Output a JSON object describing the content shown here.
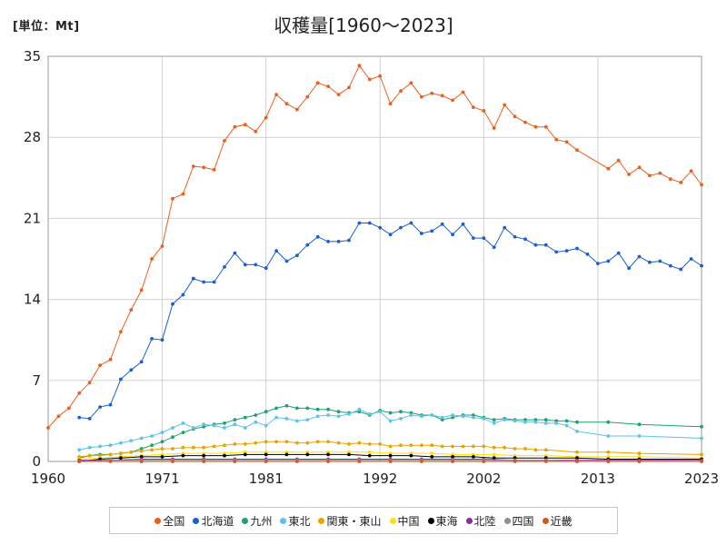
{
  "header": {
    "unit": "[単位：Mt]",
    "title": "収穫量[1960～2023]"
  },
  "chart_data": {
    "type": "line",
    "title": "収穫量[1960～2023]",
    "unit": "[単位：Mt]",
    "xlabel": "",
    "ylabel": "",
    "xlim": [
      1960,
      2023
    ],
    "ylim": [
      0,
      35
    ],
    "x_ticks": [
      "1960",
      "1971",
      "1981",
      "1992",
      "2002",
      "2013",
      "2023"
    ],
    "x_tick_values": [
      1960,
      1971,
      1981,
      1992,
      2002,
      2013,
      2023
    ],
    "y_ticks": [
      "0",
      "7",
      "14",
      "21",
      "28",
      "35"
    ],
    "y_tick_values": [
      0,
      7,
      14,
      21,
      28,
      35
    ],
    "grid": true,
    "legend_position": "bottom",
    "series": [
      {
        "name": "全国",
        "color": "#e8601c",
        "x": [
          1960,
          1961,
          1962,
          1963,
          1964,
          1965,
          1966,
          1967,
          1968,
          1969,
          1970,
          1971,
          1972,
          1973,
          1974,
          1975,
          1976,
          1977,
          1978,
          1979,
          1980,
          1981,
          1982,
          1983,
          1984,
          1985,
          1986,
          1987,
          1988,
          1989,
          1990,
          1991,
          1992,
          1993,
          1994,
          1995,
          1996,
          1997,
          1998,
          1999,
          2000,
          2001,
          2002,
          2003,
          2004,
          2005,
          2006,
          2007,
          2008,
          2009,
          2010,
          2011,
          2014,
          2015,
          2016,
          2017,
          2018,
          2019,
          2020,
          2021,
          2022,
          2023
        ],
        "values": [
          2.9,
          3.9,
          4.6,
          5.9,
          6.8,
          8.3,
          8.8,
          11.2,
          13.1,
          14.8,
          17.5,
          18.6,
          22.7,
          23.1,
          25.5,
          25.4,
          25.2,
          27.7,
          28.9,
          29.1,
          28.5,
          29.7,
          31.7,
          30.9,
          30.4,
          31.5,
          32.7,
          32.4,
          31.7,
          32.3,
          34.2,
          33.0,
          33.3,
          30.9,
          32.0,
          32.7,
          31.5,
          31.8,
          31.6,
          31.2,
          31.9,
          30.6,
          30.3,
          28.8,
          30.8,
          29.8,
          29.3,
          28.9,
          28.9,
          27.8,
          27.6,
          26.9,
          25.3,
          26.0,
          24.8,
          25.4,
          24.7,
          24.9,
          24.4,
          24.1,
          25.1,
          23.9
        ]
      },
      {
        "name": "北海道",
        "color": "#1a5fd0",
        "x": [
          1963,
          1964,
          1965,
          1966,
          1967,
          1968,
          1969,
          1970,
          1971,
          1972,
          1973,
          1974,
          1975,
          1976,
          1977,
          1978,
          1979,
          1980,
          1981,
          1982,
          1983,
          1984,
          1985,
          1986,
          1987,
          1988,
          1989,
          1990,
          1991,
          1992,
          1993,
          1994,
          1995,
          1996,
          1997,
          1998,
          1999,
          2000,
          2001,
          2002,
          2003,
          2004,
          2005,
          2006,
          2007,
          2008,
          2009,
          2010,
          2011,
          2012,
          2013,
          2014,
          2015,
          2016,
          2017,
          2018,
          2019,
          2020,
          2021,
          2022,
          2023
        ],
        "values": [
          3.8,
          3.7,
          4.7,
          4.9,
          7.1,
          7.9,
          8.6,
          10.6,
          10.5,
          13.6,
          14.4,
          15.8,
          15.5,
          15.5,
          16.8,
          18.0,
          17.0,
          17.0,
          16.7,
          18.2,
          17.3,
          17.8,
          18.7,
          19.4,
          19.0,
          19.0,
          19.1,
          20.6,
          20.6,
          20.2,
          19.6,
          20.2,
          20.6,
          19.7,
          19.9,
          20.5,
          19.6,
          20.5,
          19.3,
          19.3,
          18.5,
          20.2,
          19.4,
          19.2,
          18.7,
          18.7,
          18.1,
          18.2,
          18.4,
          17.9,
          17.1,
          17.3,
          18.0,
          16.7,
          17.7,
          17.2,
          17.3,
          16.9,
          16.6,
          17.5,
          16.9
        ]
      },
      {
        "name": "九州",
        "color": "#1aa36e",
        "x": [
          1963,
          1964,
          1965,
          1966,
          1967,
          1968,
          1969,
          1970,
          1971,
          1972,
          1973,
          1974,
          1975,
          1976,
          1977,
          1978,
          1979,
          1980,
          1981,
          1982,
          1983,
          1984,
          1985,
          1986,
          1987,
          1988,
          1989,
          1990,
          1991,
          1992,
          1993,
          1994,
          1995,
          1996,
          1997,
          1998,
          1999,
          2000,
          2001,
          2002,
          2003,
          2004,
          2005,
          2006,
          2007,
          2008,
          2009,
          2010,
          2011,
          2014,
          2017,
          2023
        ],
        "values": [
          0.3,
          0.5,
          0.6,
          0.6,
          0.7,
          0.8,
          1.1,
          1.4,
          1.7,
          2.1,
          2.5,
          2.8,
          3.0,
          3.2,
          3.3,
          3.6,
          3.8,
          4.0,
          4.3,
          4.6,
          4.8,
          4.6,
          4.6,
          4.5,
          4.5,
          4.3,
          4.2,
          4.3,
          4.0,
          4.4,
          4.2,
          4.3,
          4.2,
          4.0,
          4.0,
          3.6,
          3.8,
          4.0,
          4.0,
          3.8,
          3.6,
          3.7,
          3.6,
          3.6,
          3.6,
          3.6,
          3.5,
          3.5,
          3.4,
          3.4,
          3.2,
          3.0
        ]
      },
      {
        "name": "東北",
        "color": "#5ec1ee",
        "x": [
          1963,
          1964,
          1965,
          1966,
          1967,
          1968,
          1969,
          1970,
          1971,
          1972,
          1973,
          1974,
          1975,
          1976,
          1977,
          1978,
          1979,
          1980,
          1981,
          1982,
          1983,
          1984,
          1985,
          1986,
          1987,
          1988,
          1989,
          1990,
          1991,
          1992,
          1993,
          1994,
          1995,
          1996,
          1997,
          1998,
          1999,
          2000,
          2001,
          2002,
          2003,
          2004,
          2005,
          2006,
          2007,
          2008,
          2009,
          2010,
          2011,
          2014,
          2017,
          2023
        ],
        "values": [
          1.0,
          1.2,
          1.3,
          1.4,
          1.6,
          1.8,
          2.0,
          2.2,
          2.5,
          2.9,
          3.3,
          2.9,
          3.2,
          3.1,
          2.9,
          3.2,
          2.9,
          3.4,
          3.1,
          3.8,
          3.7,
          3.5,
          3.6,
          3.9,
          4.0,
          3.9,
          4.1,
          4.5,
          4.1,
          4.3,
          3.5,
          3.7,
          4.0,
          3.9,
          4.0,
          3.8,
          4.0,
          3.9,
          3.8,
          3.7,
          3.3,
          3.6,
          3.5,
          3.4,
          3.4,
          3.3,
          3.3,
          3.1,
          2.6,
          2.2,
          2.2,
          2.0
        ]
      },
      {
        "name": "関東・東山",
        "color": "#e9a300",
        "x": [
          1963,
          1964,
          1965,
          1966,
          1967,
          1968,
          1969,
          1970,
          1971,
          1972,
          1973,
          1974,
          1975,
          1976,
          1977,
          1978,
          1979,
          1980,
          1981,
          1982,
          1983,
          1984,
          1985,
          1986,
          1987,
          1988,
          1989,
          1990,
          1991,
          1992,
          1993,
          1994,
          1995,
          1996,
          1997,
          1998,
          1999,
          2000,
          2001,
          2002,
          2003,
          2004,
          2005,
          2006,
          2007,
          2008,
          2011,
          2014,
          2017,
          2023
        ],
        "values": [
          0.4,
          0.5,
          0.5,
          0.6,
          0.7,
          0.8,
          0.9,
          1.0,
          1.1,
          1.1,
          1.2,
          1.2,
          1.2,
          1.3,
          1.4,
          1.5,
          1.5,
          1.6,
          1.7,
          1.7,
          1.7,
          1.6,
          1.6,
          1.7,
          1.7,
          1.6,
          1.5,
          1.6,
          1.5,
          1.5,
          1.3,
          1.4,
          1.4,
          1.4,
          1.4,
          1.3,
          1.3,
          1.3,
          1.3,
          1.3,
          1.2,
          1.2,
          1.1,
          1.1,
          1.0,
          1.0,
          0.8,
          0.8,
          0.7,
          0.6
        ]
      },
      {
        "name": "中国",
        "color": "#ffe100",
        "x": [
          1963,
          1965,
          1967,
          1969,
          1971,
          1973,
          1975,
          1977,
          1979,
          1981,
          1983,
          1985,
          1987,
          1989,
          1991,
          1993,
          1995,
          1997,
          1999,
          2001,
          2003,
          2005,
          2008,
          2011,
          2014,
          2017,
          2023
        ],
        "values": [
          0.2,
          0.3,
          0.4,
          0.5,
          0.6,
          0.7,
          0.7,
          0.7,
          0.8,
          0.8,
          0.8,
          0.8,
          0.8,
          0.8,
          0.8,
          0.7,
          0.7,
          0.7,
          0.6,
          0.6,
          0.6,
          0.5,
          0.5,
          0.4,
          0.4,
          0.4,
          0.3
        ]
      },
      {
        "name": "東海",
        "color": "#000000",
        "x": [
          1963,
          1965,
          1967,
          1969,
          1971,
          1973,
          1975,
          1977,
          1979,
          1981,
          1983,
          1985,
          1987,
          1989,
          1991,
          1993,
          1995,
          1997,
          1999,
          2001,
          2003,
          2005,
          2008,
          2011,
          2014,
          2017,
          2023
        ],
        "values": [
          0.0,
          0.2,
          0.3,
          0.4,
          0.4,
          0.5,
          0.5,
          0.5,
          0.6,
          0.6,
          0.6,
          0.6,
          0.6,
          0.6,
          0.5,
          0.5,
          0.5,
          0.4,
          0.4,
          0.4,
          0.3,
          0.3,
          0.3,
          0.3,
          0.2,
          0.2,
          0.2
        ]
      },
      {
        "name": "北陸",
        "color": "#8b2b9e",
        "x": [
          1963,
          1966,
          1969,
          1972,
          1975,
          1978,
          1981,
          1984,
          1987,
          1990,
          1993,
          1996,
          1999,
          2002,
          2005,
          2008,
          2011,
          2014,
          2017,
          2023
        ],
        "values": [
          0.1,
          0.1,
          0.2,
          0.2,
          0.2,
          0.2,
          0.2,
          0.2,
          0.2,
          0.2,
          0.2,
          0.2,
          0.2,
          0.2,
          0.1,
          0.1,
          0.1,
          0.1,
          0.1,
          0.1
        ]
      },
      {
        "name": "四国",
        "color": "#8a8f99",
        "x": [
          1963,
          1966,
          1969,
          1972,
          1975,
          1978,
          1981,
          1984,
          1987,
          1990,
          1993,
          1996,
          1999,
          2002,
          2005,
          2008,
          2011,
          2014,
          2017,
          2023
        ],
        "values": [
          0.0,
          0.1,
          0.1,
          0.1,
          0.1,
          0.1,
          0.1,
          0.1,
          0.1,
          0.1,
          0.1,
          0.1,
          0.1,
          0.1,
          0.1,
          0.1,
          0.0,
          0.0,
          0.0,
          0.0
        ]
      },
      {
        "name": "近畿",
        "color": "#d9541e",
        "x": [
          1963,
          1966,
          1969,
          1972,
          1975,
          1978,
          1981,
          1984,
          1987,
          1990,
          1993,
          1996,
          1999,
          2002,
          2005,
          2008,
          2011,
          2014,
          2017,
          2023
        ],
        "values": [
          0.0,
          0.0,
          0.0,
          0.0,
          0.0,
          0.0,
          0.0,
          0.0,
          0.0,
          0.0,
          0.0,
          0.0,
          0.0,
          0.0,
          0.0,
          0.0,
          0.0,
          0.0,
          0.0,
          0.0
        ]
      }
    ]
  }
}
